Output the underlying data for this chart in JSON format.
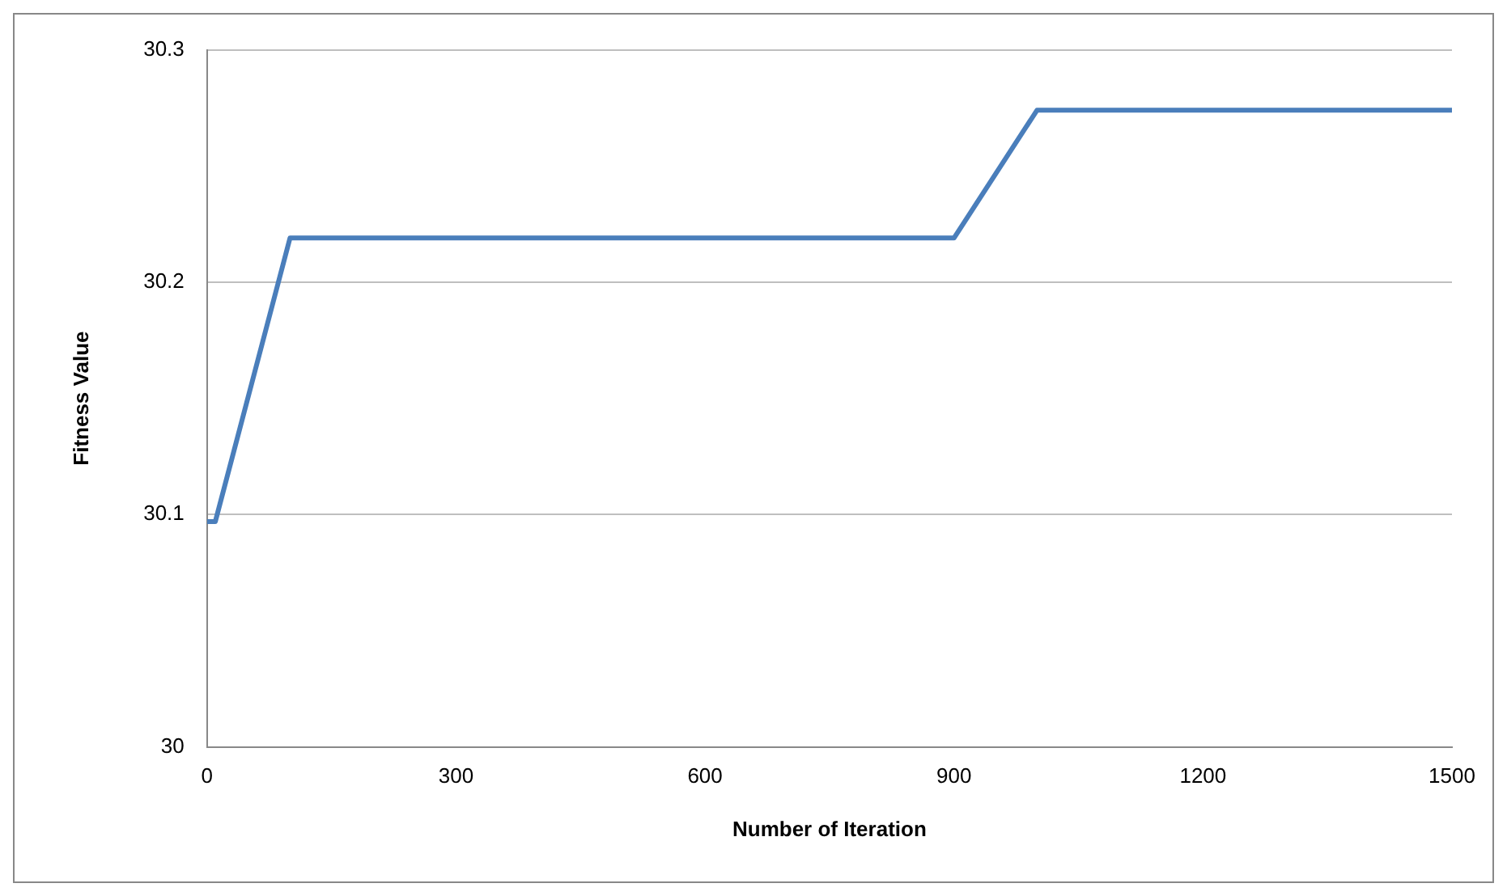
{
  "chart_data": {
    "type": "line",
    "xlabel": "Number of Iteration",
    "ylabel": "Fitness Value",
    "x": [
      0,
      10,
      100,
      900,
      1000,
      1500
    ],
    "series": [
      {
        "color": "#4a7ebb",
        "values": [
          30.097,
          30.097,
          30.219,
          30.219,
          30.274,
          30.274
        ]
      }
    ],
    "xlim": [
      0,
      1500
    ],
    "xticks": [
      0,
      300,
      600,
      900,
      1200,
      1500
    ],
    "ylim": [
      30,
      30.3
    ],
    "yticks": [
      30,
      30.1,
      30.2,
      30.3
    ],
    "grid": "y",
    "legend": false,
    "marker": "none",
    "line_style": "solid"
  }
}
